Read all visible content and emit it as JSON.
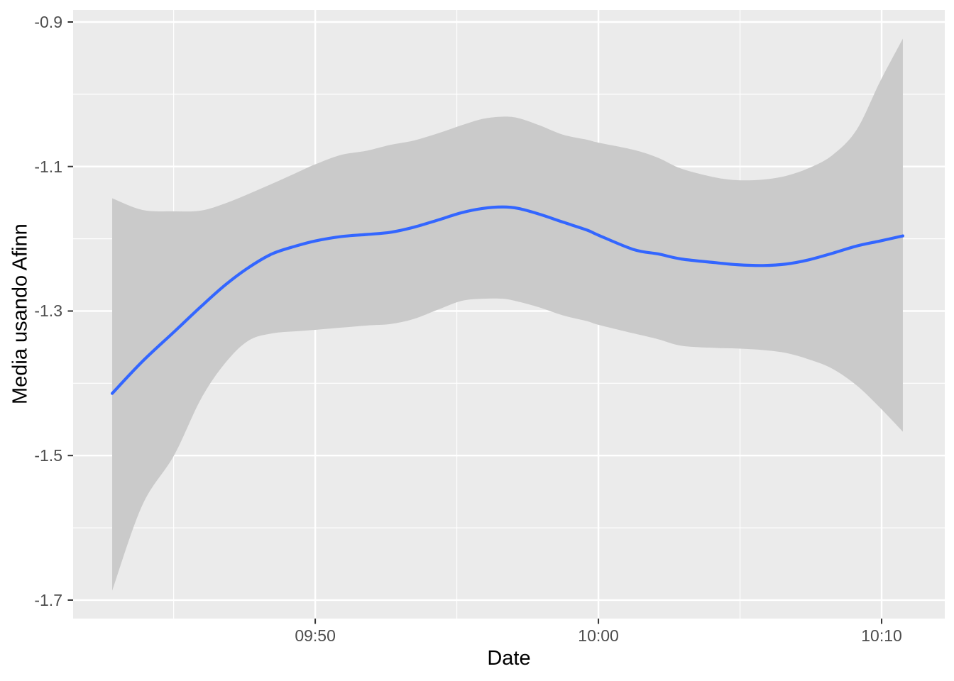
{
  "figure": {
    "background": "#FFFFFF"
  },
  "panel": {
    "background": "#EBEBEB",
    "grid_color": "#FFFFFF",
    "tick_mark_color": "#333333",
    "tick_label_color": "#4D4D4D",
    "axis_title_color": "#000000"
  },
  "chart_data": {
    "type": "line",
    "title": "",
    "xlabel": "Date",
    "ylabel": "Media usando Afinn",
    "legend": "none",
    "grid": "on",
    "line_color": "#3366FF",
    "ci_band_color": "#CACACA",
    "xlim_minutes": [
      1.45,
      32.23
    ],
    "ylim": [
      -1.7256,
      -0.8833
    ],
    "x_axis": {
      "note": "minutes are measured after 09:40",
      "major_ticks": [
        {
          "minutes": 10,
          "label": "09:50"
        },
        {
          "minutes": 20,
          "label": "10:00"
        },
        {
          "minutes": 30,
          "label": "10:10"
        }
      ],
      "minor_ticks_minutes": [
        5,
        15,
        25
      ]
    },
    "y_axis": {
      "major_ticks": [
        {
          "value": -0.9,
          "label": "-0.9"
        },
        {
          "value": -1.1,
          "label": "-1.1"
        },
        {
          "value": -1.3,
          "label": "-1.3"
        },
        {
          "value": -1.5,
          "label": "-1.5"
        },
        {
          "value": -1.7,
          "label": "-1.7"
        }
      ],
      "minor_ticks": [
        -1.0,
        -1.2,
        -1.4,
        -1.6
      ]
    },
    "series": [
      {
        "name": "loess smooth with 95% CI ribbon",
        "points": [
          {
            "time": "09:42:50",
            "minutes": 2.83,
            "value": -1.414,
            "ci_upper": -1.144,
            "ci_lower": -1.687
          },
          {
            "time": "09:43:53",
            "minutes": 3.89,
            "value": -1.37,
            "ci_upper": -1.16,
            "ci_lower": -1.569
          },
          {
            "time": "09:45:01",
            "minutes": 5.01,
            "value": -1.329,
            "ci_upper": -1.162,
            "ci_lower": -1.5
          },
          {
            "time": "09:45:58",
            "minutes": 5.96,
            "value": -1.294,
            "ci_upper": -1.161,
            "ci_lower": -1.422
          },
          {
            "time": "09:46:49",
            "minutes": 6.82,
            "value": -1.264,
            "ci_upper": -1.151,
            "ci_lower": -1.372
          },
          {
            "time": "09:47:38",
            "minutes": 7.64,
            "value": -1.24,
            "ci_upper": -1.138,
            "ci_lower": -1.341
          },
          {
            "time": "09:48:28",
            "minutes": 8.47,
            "value": -1.221,
            "ci_upper": -1.124,
            "ci_lower": -1.331
          },
          {
            "time": "09:49:19",
            "minutes": 9.32,
            "value": -1.21,
            "ci_upper": -1.109,
            "ci_lower": -1.328
          },
          {
            "time": "09:50:00",
            "minutes": 10.0,
            "value": -1.203,
            "ci_upper": -1.097,
            "ci_lower": -1.326
          },
          {
            "time": "09:50:54",
            "minutes": 10.9,
            "value": -1.197,
            "ci_upper": -1.084,
            "ci_lower": -1.323
          },
          {
            "time": "09:51:50",
            "minutes": 11.83,
            "value": -1.194,
            "ci_upper": -1.078,
            "ci_lower": -1.32
          },
          {
            "time": "09:52:40",
            "minutes": 12.66,
            "value": -1.191,
            "ci_upper": -1.07,
            "ci_lower": -1.318
          },
          {
            "time": "09:53:29",
            "minutes": 13.48,
            "value": -1.184,
            "ci_upper": -1.064,
            "ci_lower": -1.311
          },
          {
            "time": "09:54:20",
            "minutes": 14.34,
            "value": -1.174,
            "ci_upper": -1.054,
            "ci_lower": -1.298
          },
          {
            "time": "09:55:10",
            "minutes": 15.16,
            "value": -1.164,
            "ci_upper": -1.043,
            "ci_lower": -1.286
          },
          {
            "time": "09:55:55",
            "minutes": 15.92,
            "value": -1.158,
            "ci_upper": -1.034,
            "ci_lower": -1.283
          },
          {
            "time": "09:56:37",
            "minutes": 16.62,
            "value": -1.156,
            "ci_upper": -1.031,
            "ci_lower": -1.283
          },
          {
            "time": "09:57:10",
            "minutes": 17.17,
            "value": -1.158,
            "ci_upper": -1.033,
            "ci_lower": -1.287
          },
          {
            "time": "09:57:55",
            "minutes": 17.92,
            "value": -1.166,
            "ci_upper": -1.043,
            "ci_lower": -1.295
          },
          {
            "time": "09:58:45",
            "minutes": 18.75,
            "value": -1.177,
            "ci_upper": -1.056,
            "ci_lower": -1.306
          },
          {
            "time": "09:59:36",
            "minutes": 19.6,
            "value": -1.188,
            "ci_upper": -1.063,
            "ci_lower": -1.314
          },
          {
            "time": "10:00:00",
            "minutes": 20.0,
            "value": -1.195,
            "ci_upper": -1.067,
            "ci_lower": -1.319
          },
          {
            "time": "10:01:15",
            "minutes": 21.25,
            "value": -1.215,
            "ci_upper": -1.077,
            "ci_lower": -1.331
          },
          {
            "time": "10:02:07",
            "minutes": 22.11,
            "value": -1.221,
            "ci_upper": -1.088,
            "ci_lower": -1.339
          },
          {
            "time": "10:02:56",
            "minutes": 22.93,
            "value": -1.228,
            "ci_upper": -1.103,
            "ci_lower": -1.348
          },
          {
            "time": "10:04:07",
            "minutes": 24.11,
            "value": -1.233,
            "ci_upper": -1.115,
            "ci_lower": -1.351
          },
          {
            "time": "10:04:56",
            "minutes": 24.94,
            "value": -1.236,
            "ci_upper": -1.119,
            "ci_lower": -1.352
          },
          {
            "time": "10:05:49",
            "minutes": 25.82,
            "value": -1.237,
            "ci_upper": -1.118,
            "ci_lower": -1.354
          },
          {
            "time": "10:06:37",
            "minutes": 26.62,
            "value": -1.235,
            "ci_upper": -1.113,
            "ci_lower": -1.358
          },
          {
            "time": "10:07:26",
            "minutes": 27.44,
            "value": -1.229,
            "ci_upper": -1.102,
            "ci_lower": -1.367
          },
          {
            "time": "10:08:16",
            "minutes": 28.27,
            "value": -1.22,
            "ci_upper": -1.084,
            "ci_lower": -1.38
          },
          {
            "time": "10:09:07",
            "minutes": 29.12,
            "value": -1.21,
            "ci_upper": -1.049,
            "ci_lower": -1.403
          },
          {
            "time": "10:09:57",
            "minutes": 29.95,
            "value": -1.203,
            "ci_upper": -0.982,
            "ci_lower": -1.434
          },
          {
            "time": "10:10:45",
            "minutes": 30.75,
            "value": -1.196,
            "ci_upper": -0.923,
            "ci_lower": -1.467
          }
        ]
      }
    ]
  }
}
